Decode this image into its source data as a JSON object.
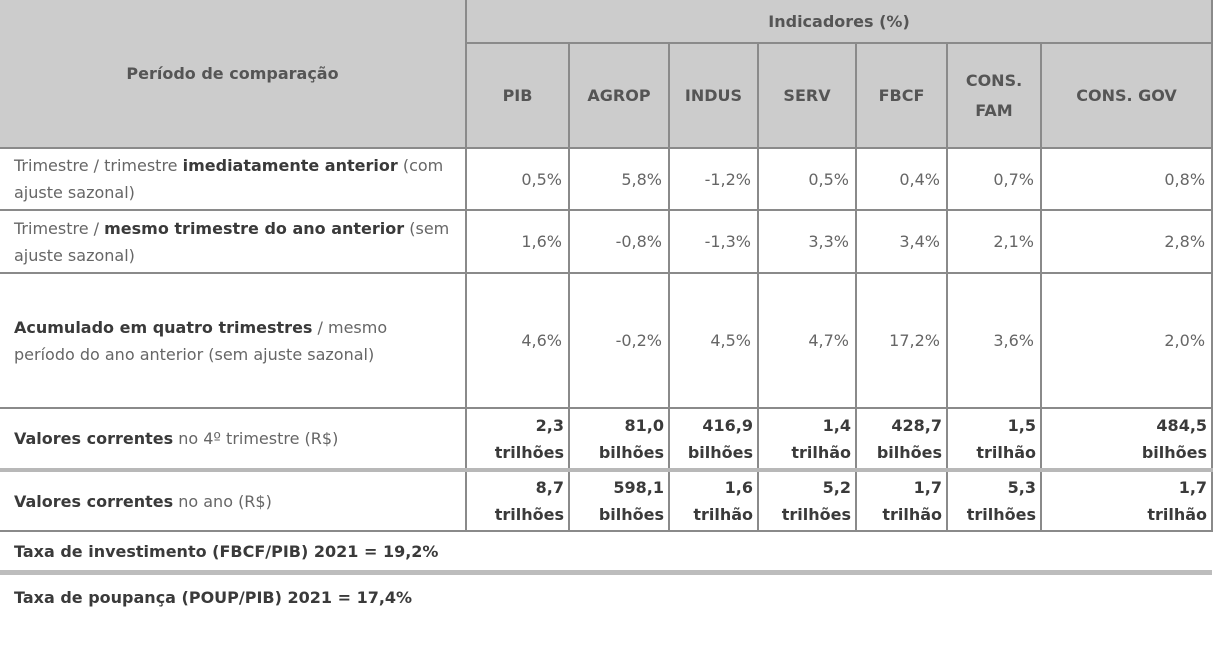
{
  "header": {
    "period_label": "Período de comparação",
    "group_label": "Indicadores (%)",
    "columns": [
      "PIB",
      "AGROP",
      "INDUS",
      "SERV",
      "FBCF",
      "CONS. FAM",
      "CONS. GOV"
    ]
  },
  "rows": [
    {
      "label": [
        {
          "text": "Trimestre / trimestre ",
          "bold": false
        },
        {
          "text": "imediatamente anterior",
          "bold": true
        },
        {
          "text": " (com ajuste sazonal)",
          "bold": false
        }
      ],
      "values": [
        "0,5%",
        "5,8%",
        "-1,2%",
        "0,5%",
        "0,4%",
        "0,7%",
        "0,8%"
      ]
    },
    {
      "label": [
        {
          "text": "Trimestre / ",
          "bold": false
        },
        {
          "text": "mesmo trimestre do ano anterior",
          "bold": true
        },
        {
          "text": " (sem ajuste sazonal)",
          "bold": false
        }
      ],
      "values": [
        "1,6%",
        "-0,8%",
        "-1,3%",
        "3,3%",
        "3,4%",
        "2,1%",
        "2,8%"
      ]
    },
    {
      "label": [
        {
          "text": "Acumulado em quatro trimestres",
          "bold": true
        },
        {
          "text": " / mesmo período do ano anterior (sem ajuste sazonal)",
          "bold": false
        }
      ],
      "values": [
        "4,6%",
        "-0,2%",
        "4,5%",
        "4,7%",
        "17,2%",
        "3,6%",
        "2,0%"
      ]
    },
    {
      "label": [
        {
          "text": "Valores correntes",
          "bold": true
        },
        {
          "text": " no 4º trimestre (R$)",
          "bold": false
        }
      ],
      "values": [
        {
          "amount": "2,3",
          "unit": "trilhões"
        },
        {
          "amount": "81,0",
          "unit": "bilhões"
        },
        {
          "amount": "416,9",
          "unit": "bilhões"
        },
        {
          "amount": "1,4",
          "unit": "trilhão"
        },
        {
          "amount": "428,7",
          "unit": "bilhões"
        },
        {
          "amount": "1,5",
          "unit": "trilhão"
        },
        {
          "amount": "484,5",
          "unit": "bilhões"
        }
      ]
    },
    {
      "label": [
        {
          "text": "Valores correntes",
          "bold": true
        },
        {
          "text": " no ano (R$)",
          "bold": false
        }
      ],
      "values": [
        {
          "amount": "8,7",
          "unit": "trilhões"
        },
        {
          "amount": "598,1",
          "unit": "bilhões"
        },
        {
          "amount": "1,6",
          "unit": "trilhão"
        },
        {
          "amount": "5,2",
          "unit": "trilhões"
        },
        {
          "amount": "1,7",
          "unit": "trilhão"
        },
        {
          "amount": "5,3",
          "unit": "trilhões"
        },
        {
          "amount": "1,7",
          "unit": "trilhão"
        }
      ]
    }
  ],
  "summary": [
    "Taxa de investimento (FBCF/PIB) 2021 = 19,2%",
    "Taxa de poupança (POUP/PIB) 2021 = 17,4%"
  ],
  "colors": {
    "header_bg": "#cccccc",
    "border": "#8a8a8a",
    "text": "#666666",
    "bold_text": "#3a3a3a"
  }
}
